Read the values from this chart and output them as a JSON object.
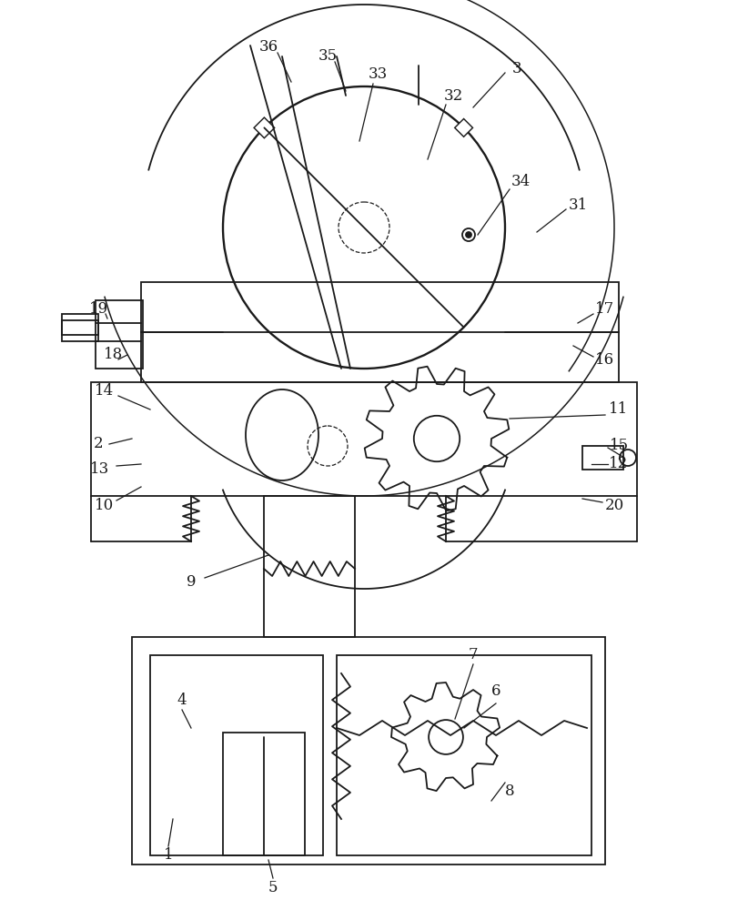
{
  "bg_color": "#ffffff",
  "line_color": "#1a1a1a",
  "lw": 1.3,
  "fig_width": 8.11,
  "fig_height": 10.0
}
